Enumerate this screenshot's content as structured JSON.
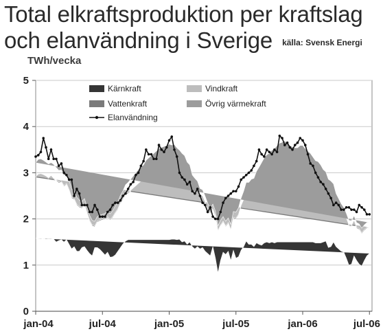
{
  "title_line1": "Total elkraftsproduktion per kraftslag",
  "title_line2": "och elanvändning i Sverige",
  "source": "källa: Svensk Energi",
  "chart_data": {
    "type": "area",
    "ylabel": "TWh/vecka",
    "ylim": [
      0,
      5
    ],
    "yticks": [
      0,
      1,
      2,
      3,
      4,
      5
    ],
    "xticks": [
      "jan-04",
      "jul-04",
      "jan-05",
      "jul-05",
      "jan-06",
      "jul-06"
    ],
    "grid": true,
    "legend_position": "top",
    "x_weeks": 132,
    "colors": {
      "Kärnkraft": "#353535",
      "Vattenkraft": "#7a7a7a",
      "Vindkraft": "#bdbdbd",
      "Övrig värmekraft": "#9c9c9c",
      "Elanvändning": "#111111"
    },
    "series": [
      {
        "name": "Kärnkraft",
        "values": [
          1.58,
          1.58,
          1.58,
          1.57,
          1.58,
          1.57,
          1.57,
          1.56,
          1.5,
          1.53,
          1.55,
          1.5,
          1.55,
          1.45,
          1.35,
          1.4,
          1.3,
          1.3,
          1.38,
          1.4,
          1.32,
          1.25,
          1.2,
          1.38,
          1.38,
          1.34,
          1.28,
          1.22,
          1.28,
          1.17,
          1.18,
          1.22,
          1.3,
          1.38,
          1.46,
          1.52,
          1.55,
          1.55,
          1.55,
          1.55,
          1.55,
          1.55,
          1.55,
          1.55,
          1.55,
          1.55,
          1.55,
          1.55,
          1.55,
          1.55,
          1.55,
          1.55,
          1.55,
          1.56,
          1.56,
          1.55,
          1.56,
          1.5,
          1.52,
          1.45,
          1.5,
          1.4,
          1.35,
          1.4,
          1.35,
          1.38,
          1.3,
          1.25,
          1.2,
          1.4,
          1.15,
          0.83,
          1.1,
          1.28,
          1.23,
          1.3,
          1.1,
          1.32,
          1.15,
          1.18,
          1.32,
          1.4,
          1.52,
          1.45,
          1.45,
          1.4,
          1.48,
          1.45,
          1.43,
          1.48,
          1.5,
          1.48,
          1.5,
          1.48,
          1.5,
          1.5,
          1.5,
          1.5,
          1.5,
          1.5,
          1.5,
          1.5,
          1.5,
          1.5,
          1.5,
          1.5,
          1.5,
          1.5,
          1.5,
          1.48,
          1.48,
          1.48,
          1.5,
          1.52,
          1.38,
          1.4,
          1.5,
          1.4,
          1.35,
          1.3,
          1.28,
          1.15,
          1.0,
          1.02,
          1.2,
          1.1,
          1.02,
          0.98,
          1.1,
          1.2,
          1.25
        ]
      },
      {
        "name": "Vattenkraft",
        "values": [
          1.32,
          1.37,
          1.38,
          1.37,
          1.33,
          1.3,
          1.35,
          1.3,
          1.33,
          1.25,
          1.25,
          1.2,
          1.2,
          1.17,
          1.1,
          1.02,
          1.0,
          0.95,
          0.85,
          0.9,
          0.8,
          0.7,
          0.65,
          0.45,
          0.55,
          0.62,
          0.7,
          0.78,
          0.75,
          0.8,
          0.85,
          0.9,
          0.9,
          0.95,
          0.95,
          1.0,
          1.0,
          1.05,
          1.1,
          1.15,
          1.2,
          1.25,
          1.3,
          1.4,
          1.45,
          1.5,
          1.55,
          1.6,
          1.65,
          1.68,
          1.7,
          1.72,
          1.75,
          1.74,
          1.75,
          1.7,
          1.65,
          1.65,
          1.6,
          1.55,
          1.45,
          1.35,
          1.35,
          1.25,
          1.15,
          1.1,
          1.05,
          0.95,
          0.9,
          0.8,
          0.9,
          0.9,
          0.75,
          0.65,
          0.6,
          0.6,
          0.65,
          0.7,
          0.85,
          0.9,
          0.95,
          1.0,
          1.05,
          1.1,
          1.15,
          1.2,
          1.25,
          1.35,
          1.45,
          1.5,
          1.55,
          1.6,
          1.65,
          1.7,
          1.75,
          1.8,
          1.82,
          1.85,
          1.8,
          1.75,
          1.72,
          1.7,
          1.7,
          1.75,
          1.75,
          1.7,
          1.65,
          1.62,
          1.55,
          1.5,
          1.5,
          1.45,
          1.35,
          1.3,
          1.3,
          1.25,
          1.1,
          1.0,
          0.95,
          0.9,
          0.85,
          0.85,
          0.85,
          0.82,
          0.75,
          0.7,
          0.75,
          0.7,
          0.65,
          0.6,
          0.55
        ]
      },
      {
        "name": "Vindkraft",
        "values": [
          0.02,
          0.02,
          0.02,
          0.02,
          0.02,
          0.02,
          0.02,
          0.02,
          0.02,
          0.02,
          0.02,
          0.02,
          0.02,
          0.02,
          0.02,
          0.02,
          0.02,
          0.02,
          0.02,
          0.02,
          0.02,
          0.02,
          0.02,
          0.02,
          0.02,
          0.02,
          0.02,
          0.02,
          0.02,
          0.02,
          0.02,
          0.02,
          0.02,
          0.02,
          0.02,
          0.02,
          0.02,
          0.02,
          0.02,
          0.02,
          0.02,
          0.02,
          0.02,
          0.02,
          0.02,
          0.02,
          0.02,
          0.02,
          0.02,
          0.02,
          0.02,
          0.02,
          0.02,
          0.02,
          0.02,
          0.02,
          0.02,
          0.02,
          0.02,
          0.02,
          0.02,
          0.02,
          0.02,
          0.02,
          0.02,
          0.02,
          0.02,
          0.02,
          0.02,
          0.02,
          0.02,
          0.02,
          0.02,
          0.02,
          0.02,
          0.02,
          0.02,
          0.02,
          0.02,
          0.02,
          0.02,
          0.02,
          0.02,
          0.02,
          0.02,
          0.02,
          0.02,
          0.02,
          0.02,
          0.02,
          0.02,
          0.02,
          0.02,
          0.02,
          0.02,
          0.02,
          0.02,
          0.02,
          0.02,
          0.02,
          0.02,
          0.02,
          0.02,
          0.02,
          0.02,
          0.02,
          0.02,
          0.02,
          0.02,
          0.02,
          0.02,
          0.02,
          0.02,
          0.02,
          0.02,
          0.02,
          0.02,
          0.02,
          0.02,
          0.02,
          0.02,
          0.02,
          0.02,
          0.02,
          0.02,
          0.02,
          0.02,
          0.02,
          0.02,
          0.02,
          0.02,
          0.02
        ]
      },
      {
        "name": "Övrig värmekraft",
        "values": [
          0.3,
          0.32,
          0.32,
          0.31,
          0.3,
          0.3,
          0.28,
          0.3,
          0.26,
          0.25,
          0.24,
          0.22,
          0.2,
          0.2,
          0.18,
          0.16,
          0.15,
          0.14,
          0.13,
          0.12,
          0.12,
          0.11,
          0.1,
          0.1,
          0.1,
          0.1,
          0.1,
          0.1,
          0.11,
          0.12,
          0.13,
          0.14,
          0.15,
          0.16,
          0.18,
          0.2,
          0.22,
          0.24,
          0.26,
          0.28,
          0.3,
          0.3,
          0.3,
          0.3,
          0.3,
          0.3,
          0.3,
          0.3,
          0.3,
          0.3,
          0.3,
          0.3,
          0.3,
          0.28,
          0.28,
          0.27,
          0.26,
          0.25,
          0.23,
          0.21,
          0.2,
          0.18,
          0.16,
          0.15,
          0.14,
          0.13,
          0.12,
          0.12,
          0.11,
          0.1,
          0.1,
          0.1,
          0.1,
          0.1,
          0.1,
          0.1,
          0.11,
          0.12,
          0.13,
          0.14,
          0.16,
          0.18,
          0.2,
          0.22,
          0.24,
          0.26,
          0.28,
          0.3,
          0.32,
          0.32,
          0.32,
          0.32,
          0.32,
          0.32,
          0.32,
          0.32,
          0.32,
          0.32,
          0.32,
          0.32,
          0.32,
          0.32,
          0.32,
          0.32,
          0.32,
          0.3,
          0.3,
          0.28,
          0.27,
          0.26,
          0.24,
          0.22,
          0.2,
          0.18,
          0.16,
          0.15,
          0.14,
          0.13,
          0.12,
          0.11,
          0.1,
          0.1,
          0.1,
          0.1,
          0.1,
          0.1,
          0.1,
          0.1,
          0.1,
          0.1,
          0.1
        ]
      },
      {
        "name": "Elanvändning",
        "values": [
          3.35,
          3.38,
          3.45,
          3.75,
          3.55,
          3.3,
          3.5,
          3.3,
          3.3,
          3.15,
          3.2,
          3.0,
          2.95,
          2.85,
          2.85,
          2.5,
          2.65,
          2.55,
          2.3,
          2.3,
          2.3,
          2.15,
          2.15,
          2.3,
          2.2,
          2.05,
          2.05,
          2.05,
          2.15,
          2.2,
          2.3,
          2.35,
          2.35,
          2.4,
          2.5,
          2.55,
          2.65,
          2.75,
          2.8,
          2.95,
          3.0,
          3.15,
          3.25,
          3.5,
          3.4,
          3.4,
          3.3,
          3.3,
          3.6,
          3.5,
          3.45,
          3.55,
          3.7,
          3.78,
          3.5,
          3.35,
          3.0,
          2.9,
          2.85,
          2.75,
          2.8,
          2.6,
          2.55,
          2.65,
          2.5,
          2.35,
          2.3,
          2.15,
          2.25,
          2.05,
          2.0,
          2.0,
          2.15,
          2.35,
          2.45,
          2.5,
          2.55,
          2.6,
          2.6,
          2.7,
          2.85,
          2.9,
          2.95,
          3.0,
          3.05,
          3.15,
          3.25,
          3.5,
          3.4,
          3.35,
          3.5,
          3.45,
          3.4,
          3.5,
          3.45,
          3.8,
          3.75,
          3.6,
          3.65,
          3.55,
          3.5,
          3.6,
          3.65,
          3.75,
          3.7,
          3.6,
          3.4,
          3.2,
          3.15,
          3.0,
          2.9,
          2.8,
          2.75,
          2.65,
          2.55,
          2.45,
          2.3,
          2.35,
          2.3,
          2.2,
          2.2,
          2.25,
          2.25,
          2.2,
          2.2,
          2.15,
          2.3,
          2.25,
          2.2,
          2.1,
          2.1
        ]
      }
    ]
  }
}
